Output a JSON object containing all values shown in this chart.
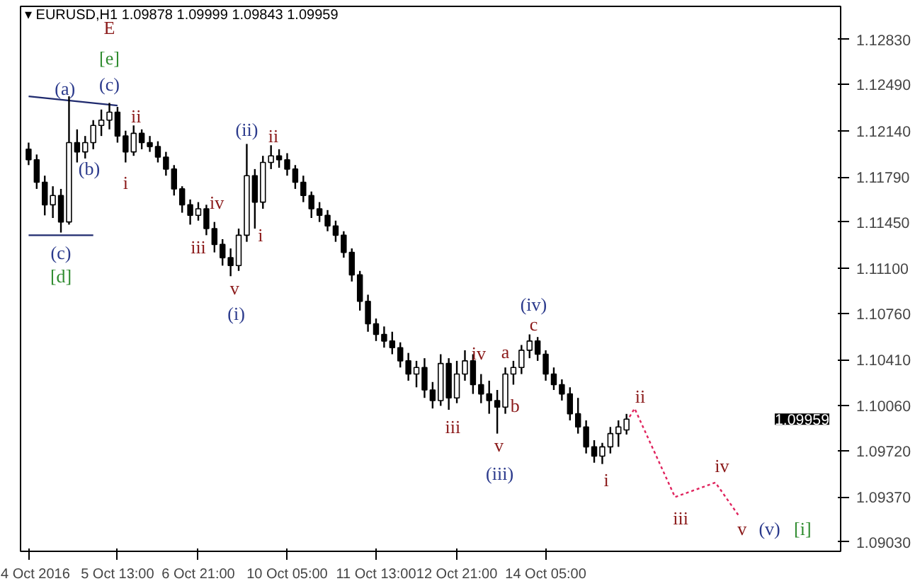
{
  "chart_data": {
    "type": "candlestick",
    "title": "▾ EURUSD,H1 1.09878 1.09999 1.09843 1.09959",
    "color": "#000000",
    "categories": [
      "4 Oct 2016",
      null,
      null,
      null,
      null,
      null,
      null,
      null,
      null,
      null,
      null,
      "5 Oct 13:00",
      null,
      null,
      null,
      null,
      null,
      null,
      null,
      null,
      null,
      "6 Oct 21:00",
      null,
      null,
      null,
      null,
      null,
      null,
      null,
      null,
      null,
      null,
      "10 Oct 05:00",
      null,
      null,
      null,
      null,
      null,
      null,
      null,
      null,
      null,
      null,
      "11 Oct 13:00",
      null,
      null,
      null,
      null,
      null,
      null,
      null,
      null,
      null,
      "12 Oct 21:00",
      null,
      null,
      null,
      null,
      null,
      null,
      null,
      null,
      null,
      null,
      "14 Oct 05:00",
      null,
      null,
      null,
      null,
      null,
      null,
      null,
      null,
      null,
      null,
      null,
      null,
      null,
      null,
      null,
      null,
      null,
      null,
      null,
      null,
      null,
      null,
      null,
      null,
      null,
      null,
      null,
      null,
      null,
      null,
      null,
      null,
      null,
      null,
      null,
      null
    ],
    "ohlc": [
      [
        1.12,
        1.1205,
        1.1188,
        1.1192
      ],
      [
        1.1192,
        1.1196,
        1.117,
        1.1175
      ],
      [
        1.1175,
        1.118,
        1.115,
        1.1158
      ],
      [
        1.1158,
        1.1172,
        1.1148,
        1.1165
      ],
      [
        1.1165,
        1.117,
        1.1137,
        1.1145
      ],
      [
        1.1145,
        1.124,
        1.1143,
        1.1205
      ],
      [
        1.1205,
        1.1215,
        1.119,
        1.1198
      ],
      [
        1.1198,
        1.121,
        1.1193,
        1.1205
      ],
      [
        1.1205,
        1.1222,
        1.12,
        1.1218
      ],
      [
        1.1218,
        1.123,
        1.121,
        1.1222
      ],
      [
        1.1222,
        1.1235,
        1.1215,
        1.1228
      ],
      [
        1.1228,
        1.1232,
        1.1205,
        1.121
      ],
      [
        1.121,
        1.1214,
        1.119,
        1.1198
      ],
      [
        1.1198,
        1.1218,
        1.1195,
        1.1212
      ],
      [
        1.1212,
        1.1215,
        1.12,
        1.1205
      ],
      [
        1.1205,
        1.121,
        1.1198,
        1.1202
      ],
      [
        1.1202,
        1.1206,
        1.119,
        1.1194
      ],
      [
        1.1194,
        1.1198,
        1.118,
        1.1185
      ],
      [
        1.1185,
        1.1188,
        1.1165,
        1.117
      ],
      [
        1.117,
        1.1172,
        1.1152,
        1.1158
      ],
      [
        1.1158,
        1.1162,
        1.1143,
        1.115
      ],
      [
        1.115,
        1.116,
        1.1146,
        1.1155
      ],
      [
        1.1155,
        1.1158,
        1.1135,
        1.114
      ],
      [
        1.114,
        1.1145,
        1.1122,
        1.1128
      ],
      [
        1.1128,
        1.1132,
        1.1112,
        1.1118
      ],
      [
        1.1118,
        1.1125,
        1.1104,
        1.1112
      ],
      [
        1.1112,
        1.114,
        1.1108,
        1.1135
      ],
      [
        1.1135,
        1.1204,
        1.113,
        1.118
      ],
      [
        1.118,
        1.1185,
        1.114,
        1.116
      ],
      [
        1.116,
        1.1195,
        1.1155,
        1.119
      ],
      [
        1.119,
        1.1203,
        1.1185,
        1.1195
      ],
      [
        1.1195,
        1.12,
        1.1186,
        1.1192
      ],
      [
        1.1192,
        1.1197,
        1.118,
        1.1185
      ],
      [
        1.1185,
        1.1188,
        1.117,
        1.1175
      ],
      [
        1.1175,
        1.118,
        1.116,
        1.1165
      ],
      [
        1.1165,
        1.1168,
        1.1148,
        1.1155
      ],
      [
        1.1155,
        1.116,
        1.1145,
        1.115
      ],
      [
        1.115,
        1.1154,
        1.1138,
        1.1142
      ],
      [
        1.1142,
        1.1146,
        1.113,
        1.1135
      ],
      [
        1.1135,
        1.1138,
        1.1118,
        1.1122
      ],
      [
        1.1122,
        1.1125,
        1.11,
        1.1105
      ],
      [
        1.1105,
        1.1108,
        1.1078,
        1.1085
      ],
      [
        1.1085,
        1.109,
        1.1062,
        1.1068
      ],
      [
        1.1068,
        1.1072,
        1.1055,
        1.106
      ],
      [
        1.106,
        1.1066,
        1.105,
        1.1055
      ],
      [
        1.1055,
        1.1062,
        1.1045,
        1.105
      ],
      [
        1.105,
        1.1054,
        1.1035,
        1.104
      ],
      [
        1.104,
        1.1046,
        1.1025,
        1.103
      ],
      [
        1.103,
        1.104,
        1.102,
        1.1035
      ],
      [
        1.1035,
        1.1042,
        1.1012,
        1.1018
      ],
      [
        1.1018,
        1.1024,
        1.1004,
        1.101
      ],
      [
        1.101,
        1.1045,
        1.1006,
        1.1038
      ],
      [
        1.1038,
        1.1042,
        1.1003,
        1.1012
      ],
      [
        1.1012,
        1.104,
        1.1008,
        1.103
      ],
      [
        1.103,
        1.1048,
        1.1025,
        1.104
      ],
      [
        1.104,
        1.1045,
        1.1015,
        1.1022
      ],
      [
        1.1022,
        1.103,
        1.1008,
        1.1015
      ],
      [
        1.1015,
        1.1025,
        1.1,
        1.101
      ],
      [
        1.101,
        1.1018,
        1.0985,
        1.1005
      ],
      [
        1.1005,
        1.1035,
        1.1,
        1.103
      ],
      [
        1.103,
        1.104,
        1.1022,
        1.1035
      ],
      [
        1.1035,
        1.1052,
        1.103,
        1.1048
      ],
      [
        1.1048,
        1.106,
        1.1042,
        1.1055
      ],
      [
        1.1055,
        1.1058,
        1.104,
        1.1045
      ],
      [
        1.1045,
        1.1048,
        1.1025,
        1.103
      ],
      [
        1.103,
        1.1035,
        1.1018,
        1.1022
      ],
      [
        1.1022,
        1.1026,
        1.101,
        1.1015
      ],
      [
        1.1015,
        1.102,
        1.0995,
        1.1
      ],
      [
        1.1,
        1.1012,
        1.0985,
        1.099
      ],
      [
        1.099,
        1.0995,
        1.097,
        1.0975
      ],
      [
        1.0975,
        1.098,
        1.0963,
        1.0968
      ],
      [
        1.0968,
        1.0978,
        1.0962,
        1.0975
      ],
      [
        1.0975,
        1.099,
        1.097,
        1.0985
      ],
      [
        1.0985,
        1.0995,
        1.0975,
        1.099
      ],
      [
        1.09878,
        1.09999,
        1.09843,
        1.09959
      ],
      null,
      null,
      null,
      null,
      null,
      null,
      null,
      null,
      null,
      null,
      null,
      null,
      null,
      null,
      null,
      null,
      null,
      null,
      null,
      null,
      null,
      null,
      null,
      null,
      null,
      null
    ],
    "series": [
      {
        "type": "line",
        "color": "#1f2a6e",
        "line_style": "solid",
        "values": [
          1.124,
          null,
          null,
          null,
          null,
          null,
          null,
          null,
          null,
          null,
          null,
          1.1233,
          null,
          null,
          null,
          null,
          null,
          null,
          null,
          null,
          null,
          null,
          null,
          null,
          null,
          null,
          null,
          null,
          null,
          null,
          null,
          null,
          null,
          null,
          null,
          null,
          null,
          null,
          null,
          null,
          null,
          null,
          null,
          null,
          null,
          null,
          null,
          null,
          null,
          null,
          null,
          null,
          null,
          null,
          null,
          null,
          null,
          null,
          null,
          null,
          null,
          null,
          null,
          null,
          null,
          null,
          null,
          null,
          null,
          null,
          null,
          null,
          null,
          null,
          null,
          null,
          null,
          null,
          null,
          null,
          null,
          null,
          null,
          null,
          null,
          null,
          null,
          null,
          null,
          null,
          null,
          null,
          null,
          null,
          null,
          null,
          null,
          null,
          null,
          null,
          null
        ]
      },
      {
        "type": "line",
        "color": "#1f2a6e",
        "line_style": "solid",
        "values": [
          1.1135,
          null,
          null,
          null,
          null,
          null,
          null,
          null,
          1.1135,
          null,
          null,
          null,
          null,
          null,
          null,
          null,
          null,
          null,
          null,
          null,
          null,
          null,
          null,
          null,
          null,
          null,
          null,
          null,
          null,
          null,
          null,
          null,
          null,
          null,
          null,
          null,
          null,
          null,
          null,
          null,
          null,
          null,
          null,
          null,
          null,
          null,
          null,
          null,
          null,
          null,
          null,
          null,
          null,
          null,
          null,
          null,
          null,
          null,
          null,
          null,
          null,
          null,
          null,
          null,
          null,
          null,
          null,
          null,
          null,
          null,
          null,
          null,
          null,
          null,
          null,
          null,
          null,
          null,
          null,
          null,
          null,
          null,
          null,
          null,
          null,
          null,
          null,
          null,
          null,
          null,
          null,
          null,
          null,
          null,
          null,
          null,
          null,
          null,
          null,
          null,
          null
        ]
      },
      {
        "type": "line",
        "color": "#e0245e",
        "line_style": "dotted",
        "values": [
          null,
          null,
          null,
          null,
          null,
          null,
          null,
          null,
          null,
          null,
          null,
          null,
          null,
          null,
          null,
          null,
          null,
          null,
          null,
          null,
          null,
          null,
          null,
          null,
          null,
          null,
          null,
          null,
          null,
          null,
          null,
          null,
          null,
          null,
          null,
          null,
          null,
          null,
          null,
          null,
          null,
          null,
          null,
          null,
          null,
          null,
          null,
          null,
          null,
          null,
          null,
          null,
          null,
          null,
          null,
          null,
          null,
          null,
          null,
          null,
          null,
          null,
          null,
          null,
          null,
          null,
          null,
          null,
          null,
          null,
          null,
          null,
          null,
          null,
          1.0994,
          1.1004,
          null,
          null,
          null,
          null,
          1.0937,
          null,
          null,
          null,
          null,
          1.0948,
          null,
          null,
          1.0922,
          null,
          null,
          null,
          null,
          null,
          null,
          null,
          null,
          null,
          null,
          null,
          null
        ]
      }
    ],
    "ylim": [
      1.0896,
      1.1308
    ],
    "yticks": [
      {
        "value": 1.0903,
        "label": "1.09030"
      },
      {
        "value": 1.0937,
        "label": "1.09370"
      },
      {
        "value": 1.0972,
        "label": "1.09720"
      },
      {
        "value": 1.1006,
        "label": "1.10060"
      },
      {
        "value": 1.1041,
        "label": "1.10410"
      },
      {
        "value": 1.1076,
        "label": "1.10760"
      },
      {
        "value": 1.111,
        "label": "1.11100"
      },
      {
        "value": 1.1145,
        "label": "1.11450"
      },
      {
        "value": 1.1179,
        "label": "1.11790"
      },
      {
        "value": 1.1214,
        "label": "1.12140"
      },
      {
        "value": 1.1249,
        "label": "1.12490"
      },
      {
        "value": 1.1283,
        "label": "1.12830"
      }
    ],
    "grid": false,
    "annotations": [
      "1.09959",
      "E",
      "[e]",
      "(c)",
      "(a)",
      {
        "text": "(b)",
        "y": 1.119
      },
      "ii",
      "i",
      {
        "text": "(c)",
        "y": 1.1137
      },
      "[d]",
      "iii",
      "iv",
      "v",
      "(i)",
      "(ii)",
      "i",
      "ii",
      "iii",
      "iv",
      "v",
      "(iii)",
      "a",
      "b",
      "(iv)",
      "c",
      "i",
      "ii",
      "iii",
      "iv",
      "v",
      "(v)",
      "[i]"
    ]
  }
}
